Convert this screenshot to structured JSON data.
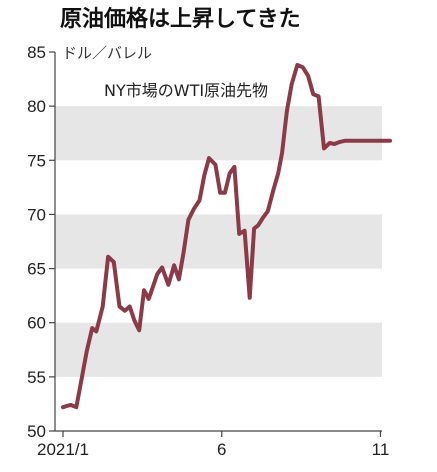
{
  "chart_data": {
    "type": "line",
    "title": "原油価格は上昇してきた",
    "ylabel": "ドル／バレル",
    "annotation": "NY市場のWTI原油先物",
    "ylim": [
      50,
      85
    ],
    "yticks": [
      50,
      55,
      60,
      65,
      70,
      75,
      80,
      85
    ],
    "xlim": [
      1,
      11.3
    ],
    "xticks": [
      {
        "value": 1,
        "label": "2021/1"
      },
      {
        "value": 6,
        "label": "6"
      },
      {
        "value": 11,
        "label": "11"
      }
    ],
    "bands": [
      [
        55,
        60
      ],
      [
        65,
        70
      ],
      [
        75,
        80
      ]
    ],
    "line_color": "#8b3a48",
    "band_color": "#e6e6e6",
    "series": [
      {
        "x": [
          1.0,
          1.1,
          1.25,
          1.42,
          1.6,
          1.75,
          1.92,
          2.05,
          2.25,
          2.42,
          2.6,
          2.78,
          2.95,
          3.1,
          3.25,
          3.4,
          3.55,
          3.7,
          3.82,
          3.97,
          4.12,
          4.32,
          4.5,
          4.65,
          4.8,
          4.95,
          5.12,
          5.3,
          5.45,
          5.6,
          5.8,
          5.95,
          6.1,
          6.25,
          6.4,
          6.55,
          6.72,
          6.88,
          7.02,
          7.15,
          7.3,
          7.45,
          7.62,
          7.78,
          7.9,
          8.05,
          8.2,
          8.38,
          8.55,
          8.72,
          8.88,
          9.05,
          9.22,
          9.4,
          9.55,
          9.72,
          9.88,
          10.05,
          10.2,
          10.35,
          10.52,
          10.65,
          10.8,
          10.95,
          11.1,
          11.3
        ],
        "y": [
          52.2,
          52.3,
          52.4,
          52.2,
          55.0,
          57.4,
          59.5,
          59.2,
          61.5,
          66.1,
          65.6,
          61.5,
          61.1,
          61.5,
          60.2,
          59.3,
          63.0,
          62.2,
          63.2,
          64.5,
          65.1,
          63.5,
          65.3,
          64.0,
          66.5,
          69.5,
          70.5,
          71.3,
          73.6,
          75.2,
          74.6,
          72.0,
          72.0,
          73.8,
          74.4,
          68.2,
          68.5,
          62.3,
          68.7,
          69.0,
          69.7,
          70.3,
          72.2,
          73.8,
          75.7,
          79.5,
          82.0,
          83.8,
          83.6,
          82.8,
          81.1,
          80.9,
          76.1,
          76.6,
          76.5,
          76.7,
          76.8,
          76.8,
          76.8,
          76.8,
          76.8,
          76.8,
          76.8,
          76.8,
          76.8,
          76.8
        ]
      }
    ]
  }
}
